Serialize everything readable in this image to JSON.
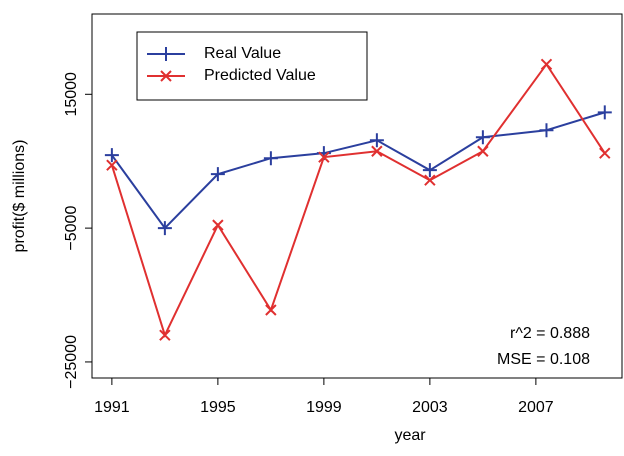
{
  "chart_data": {
    "type": "line",
    "xlabel": "year",
    "ylabel": "profit($ millions)",
    "x": [
      1991,
      1993,
      1995,
      1997,
      1999,
      2001,
      2003,
      2005,
      2007.4,
      2009.6
    ],
    "series": [
      {
        "name": "Real Value",
        "color": "#2b3f9e",
        "marker": "plus",
        "values": [
          5900,
          -5000,
          3060,
          5450,
          6200,
          8130,
          3660,
          8580,
          9630,
          12300
        ]
      },
      {
        "name": "Predicted Value",
        "color": "#e03030",
        "marker": "cross",
        "values": [
          4400,
          -21000,
          -4550,
          -17240,
          5600,
          6490,
          2160,
          6490,
          19480,
          6200
        ]
      }
    ],
    "xlim": [
      1990.25,
      2010.25
    ],
    "xticks": [
      1991,
      1995,
      1999,
      2003,
      2007
    ],
    "ylim": [
      -27400,
      27000
    ],
    "yticks": [
      {
        "value": -25000,
        "label": "−25000"
      },
      {
        "value": -5000,
        "label": "−5000"
      },
      {
        "value": 15000,
        "label": "15000"
      }
    ],
    "annotations": [
      "r^2 = 0.888",
      "MSE = 0.108"
    ],
    "legend": "top-left"
  }
}
